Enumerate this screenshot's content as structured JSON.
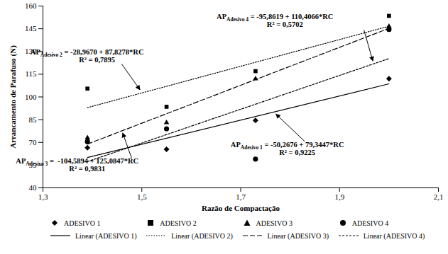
{
  "chart_data": {
    "type": "scatter",
    "x_label": "Razão de Compactação",
    "y_label": "Arrancamento de Parafuso (N)",
    "x": [
      1.39,
      1.55,
      1.73,
      2.0
    ],
    "xlim": [
      1.3,
      2.1
    ],
    "xticks": [
      {
        "value": 1.3,
        "label": "1,3"
      },
      {
        "value": 1.5,
        "label": "1,5"
      },
      {
        "value": 1.7,
        "label": "1,7"
      },
      {
        "value": 1.9,
        "label": "1,9"
      },
      {
        "value": 2.1,
        "label": "2,1"
      }
    ],
    "ylim": [
      40,
      160
    ],
    "yticks": [
      40,
      55,
      70,
      85,
      100,
      115,
      130,
      145,
      160
    ],
    "grid": false,
    "legend": "bottom",
    "series": [
      {
        "name": "ADESIVO 1",
        "color": "#000000",
        "marker": "diamond",
        "values": [
          66.5,
          65.5,
          84.5,
          112
        ],
        "trendline": {
          "name": "Linear (ADESIVO 1)",
          "line_style": "solid",
          "equation": {
            "lhs": "AP",
            "sub": "Adesivo 1",
            "rhs": " = -50,2676 + 79,3447*RC"
          },
          "r2": "R² = 0,9225"
        }
      },
      {
        "name": "ADESIVO 2",
        "color": "#000000",
        "marker": "square",
        "values": [
          105.5,
          93.5,
          117,
          153.5
        ],
        "trendline": {
          "name": "Linear (ADESIVO 2)",
          "line_style": "dotted",
          "equation": {
            "lhs": "AP",
            "sub": "Adesivo 2",
            "rhs": " = -28,9670 + 87,8278*RC"
          },
          "r2": "R² = 0,7895"
        }
      },
      {
        "name": "ADESIVO 3",
        "color": "#000000",
        "marker": "triangle",
        "values": [
          73,
          83,
          112,
          146.5
        ],
        "trendline": {
          "name": "Linear (ADESIVO 3)",
          "line_style": "long_dashed",
          "equation": {
            "lhs": "AP",
            "sub": "Adesivo 3",
            "rhs": " =  -104,5894 + 125,0847*RC"
          },
          "r2": "R² = 0,9831"
        }
      },
      {
        "name": "ADESIVO 4",
        "color": "#000000",
        "marker": "circle",
        "values": [
          70.5,
          79,
          59,
          144.5
        ],
        "trendline": {
          "name": "Linear (ADESIVO 4)",
          "line_style": "dashed",
          "equation": {
            "lhs": "AP",
            "sub": "Adesivo 4",
            "rhs": " = -95,8619 + 110,4066*RC"
          },
          "r2": "R² = 0,5702"
        }
      }
    ]
  }
}
